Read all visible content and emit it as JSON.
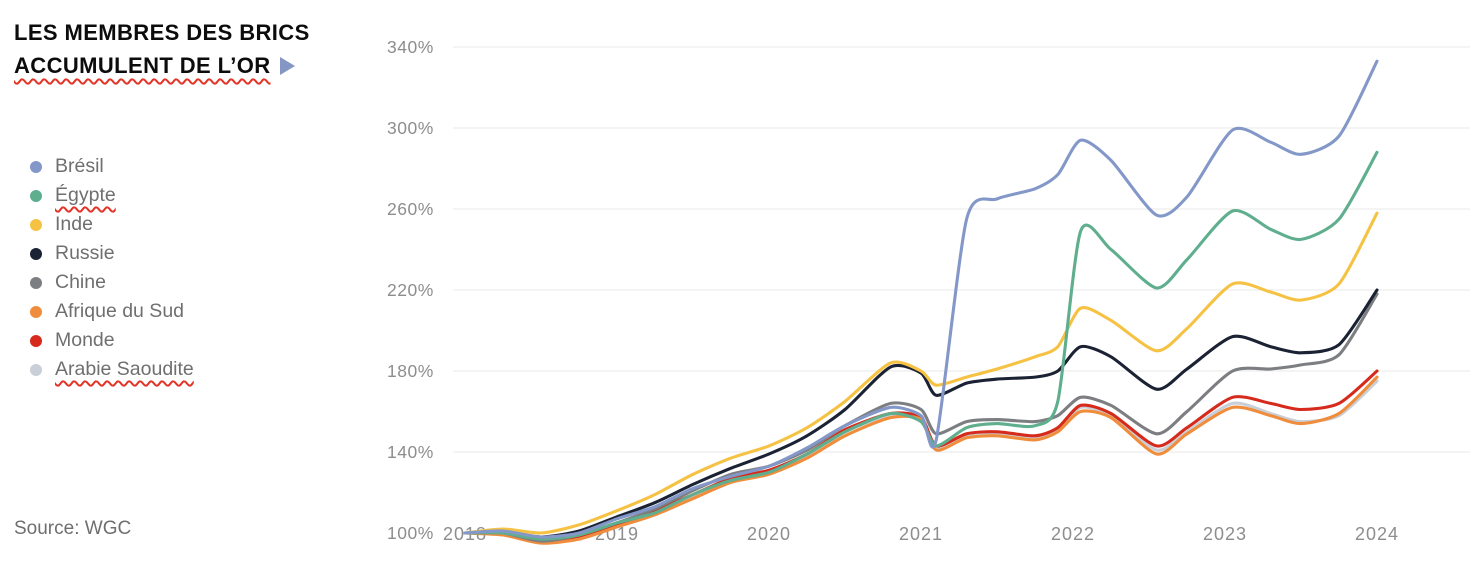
{
  "title": {
    "line1": "LES MEMBRES DES BRICS",
    "line2": "ACCUMULENT DE L’OR"
  },
  "source": "Source: WGC",
  "colors": {
    "accent_triangle": "#8496c4",
    "grid": "#e9e9e9",
    "axis_text": "#8d8d8d",
    "legend_text": "#6f6f6f",
    "title_text": "#0c0c0c",
    "squiggle": "#e23527"
  },
  "chart_data": {
    "type": "line",
    "title": "LES MEMBRES DES BRICS ACCUMULENT DE L’OR",
    "xlabel": "",
    "ylabel": "",
    "legend_position": "left",
    "grid": "horizontal",
    "xlim": [
      2018,
      2024.2
    ],
    "ylim": [
      100,
      340
    ],
    "x_ticks": [
      2018,
      2019,
      2020,
      2021,
      2022,
      2023,
      2024
    ],
    "x_tick_labels": [
      "2018",
      "2019",
      "2020",
      "2021",
      "2022",
      "2023",
      "2024"
    ],
    "y_ticks": [
      100,
      140,
      180,
      220,
      260,
      300,
      340
    ],
    "y_tick_labels": [
      "100%",
      "140%",
      "180%",
      "220%",
      "260%",
      "300%",
      "340%"
    ],
    "x": [
      2018,
      2018.25,
      2018.5,
      2018.75,
      2019,
      2019.25,
      2019.5,
      2019.75,
      2020,
      2020.25,
      2020.5,
      2020.8,
      2021,
      2021.1,
      2021.3,
      2021.5,
      2021.75,
      2021.9,
      2022.05,
      2022.25,
      2022.55,
      2022.75,
      2023.05,
      2023.3,
      2023.5,
      2023.75,
      2024
    ],
    "series": [
      {
        "name": "Brésil",
        "color": "#8398c8",
        "squiggle": false,
        "values": [
          100,
          101,
          98,
          100,
          107,
          113,
          122,
          128,
          133,
          142,
          153,
          162,
          158,
          146,
          255,
          265,
          270,
          277,
          294,
          284,
          257,
          266,
          299,
          293,
          287,
          296,
          333
        ]
      },
      {
        "name": "Égypte",
        "color": "#5fae8e",
        "squiggle": true,
        "values": [
          100,
          100,
          97,
          99,
          105,
          110,
          119,
          126,
          130,
          139,
          150,
          159,
          155,
          143,
          152,
          154,
          153,
          165,
          249,
          240,
          221,
          235,
          259,
          250,
          245,
          255,
          288
        ]
      },
      {
        "name": "Inde",
        "color": "#f6c244",
        "squiggle": false,
        "values": [
          100,
          102,
          100,
          104,
          111,
          119,
          129,
          137,
          143,
          152,
          165,
          184,
          180,
          173,
          177,
          181,
          187,
          192,
          211,
          205,
          190,
          201,
          223,
          219,
          215,
          223,
          258
        ]
      },
      {
        "name": "Russie",
        "color": "#1b2233",
        "squiggle": false,
        "values": [
          100,
          101,
          98,
          101,
          108,
          115,
          124,
          132,
          139,
          148,
          161,
          182,
          179,
          168,
          174,
          176,
          177,
          180,
          192,
          187,
          171,
          181,
          197,
          192,
          189,
          193,
          220
        ]
      },
      {
        "name": "Chine",
        "color": "#7c7e82",
        "squiggle": false,
        "values": [
          100,
          100,
          96,
          99,
          105,
          112,
          121,
          129,
          133,
          141,
          153,
          164,
          161,
          149,
          155,
          156,
          155,
          158,
          167,
          163,
          149,
          160,
          180,
          181,
          183,
          188,
          218
        ]
      },
      {
        "name": "Afrique du Sud",
        "color": "#f08d3c",
        "squiggle": false,
        "values": [
          100,
          99,
          95,
          97,
          103,
          109,
          117,
          125,
          129,
          137,
          148,
          157,
          156,
          141,
          147,
          148,
          146,
          150,
          160,
          157,
          139,
          149,
          162,
          158,
          154,
          159,
          177
        ]
      },
      {
        "name": "Monde",
        "color": "#d62b1c",
        "squiggle": false,
        "values": [
          100,
          100,
          96,
          98,
          104,
          111,
          119,
          127,
          131,
          139,
          151,
          159,
          157,
          143,
          149,
          150,
          148,
          152,
          163,
          159,
          143,
          152,
          167,
          164,
          161,
          164,
          180
        ]
      },
      {
        "name": "Arabie Saoudite",
        "color": "#c9cfd7",
        "squiggle": true,
        "values": [
          100,
          100,
          96,
          98,
          104,
          110,
          118,
          126,
          130,
          138,
          150,
          158,
          156,
          142,
          148,
          149,
          147,
          151,
          162,
          158,
          141,
          150,
          164,
          159,
          155,
          158,
          175
        ]
      }
    ]
  }
}
